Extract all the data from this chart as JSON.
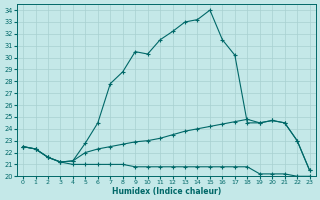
{
  "xlabel": "Humidex (Indice chaleur)",
  "xlim": [
    -0.5,
    23.5
  ],
  "ylim": [
    20,
    34.5
  ],
  "yticks": [
    20,
    21,
    22,
    23,
    24,
    25,
    26,
    27,
    28,
    29,
    30,
    31,
    32,
    33,
    34
  ],
  "xticks": [
    0,
    1,
    2,
    3,
    4,
    5,
    6,
    7,
    8,
    9,
    10,
    11,
    12,
    13,
    14,
    15,
    16,
    17,
    18,
    19,
    20,
    21,
    22,
    23
  ],
  "background_color": "#c4e8e8",
  "grid_color": "#a8d0d0",
  "line_color": "#006868",
  "line1_x": [
    0,
    1,
    2,
    3,
    4,
    5,
    6,
    7,
    8,
    9,
    10,
    11,
    12,
    13,
    14,
    15,
    16,
    17,
    18,
    19,
    20,
    21,
    22,
    23
  ],
  "line1_y": [
    22.5,
    22.3,
    21.6,
    21.2,
    21.3,
    22.8,
    24.5,
    27.8,
    28.8,
    30.5,
    30.3,
    31.5,
    32.2,
    33.0,
    33.2,
    34.0,
    31.5,
    30.2,
    24.5,
    24.5,
    24.7,
    24.5,
    23.0,
    20.5
  ],
  "line2_x": [
    0,
    1,
    2,
    3,
    4,
    5,
    6,
    7,
    8,
    9,
    10,
    11,
    12,
    13,
    14,
    15,
    16,
    17,
    18,
    19,
    20,
    21,
    22,
    23
  ],
  "line2_y": [
    22.5,
    22.3,
    21.6,
    21.2,
    21.3,
    22.0,
    22.3,
    22.5,
    22.7,
    22.9,
    23.0,
    23.2,
    23.5,
    23.8,
    24.0,
    24.2,
    24.4,
    24.6,
    24.8,
    24.5,
    24.7,
    24.5,
    23.0,
    20.5
  ],
  "line3_x": [
    0,
    1,
    2,
    3,
    4,
    5,
    6,
    7,
    8,
    9,
    10,
    11,
    12,
    13,
    14,
    15,
    16,
    17,
    18,
    19,
    20,
    21,
    22,
    23
  ],
  "line3_y": [
    22.5,
    22.3,
    21.6,
    21.2,
    21.0,
    21.0,
    21.0,
    21.0,
    21.0,
    20.8,
    20.8,
    20.8,
    20.8,
    20.8,
    20.8,
    20.8,
    20.8,
    20.8,
    20.8,
    20.2,
    20.2,
    20.2,
    20.0,
    20.0
  ]
}
